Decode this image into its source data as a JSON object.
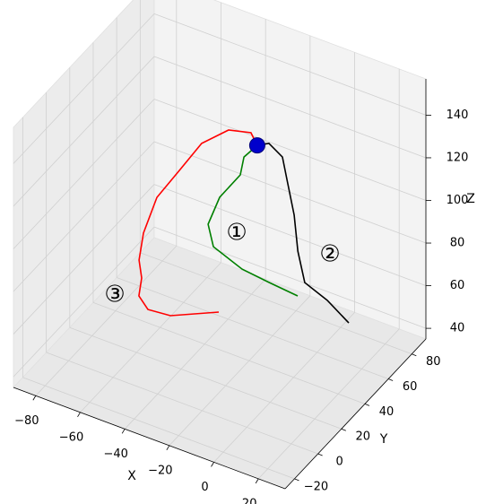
{
  "chart_data": {
    "type": "line3d",
    "xlabel": "X",
    "ylabel": "Y",
    "zlabel": "Z",
    "xlim": [
      -90,
      32
    ],
    "ylim": [
      -28,
      92
    ],
    "zlim": [
      35,
      157
    ],
    "xticks": [
      {
        "value": -80,
        "label": "−80"
      },
      {
        "value": -60,
        "label": "−60"
      },
      {
        "value": -40,
        "label": "−40"
      },
      {
        "value": -20,
        "label": "−20"
      },
      0,
      20
    ],
    "yticks": [
      {
        "value": -20,
        "label": "−20"
      },
      0,
      20,
      40,
      60,
      80
    ],
    "zticks": [
      40,
      60,
      80,
      100,
      120,
      140
    ],
    "grid": true,
    "series": [
      {
        "color": "#008000",
        "x": [
          -21.3,
          -25.4,
          -27.7,
          -34.2,
          -36.3,
          -34.2,
          -24.3,
          -15.8,
          -6.1
        ],
        "y": [
          49.4,
          45.9,
          47.1,
          41.9,
          36.0,
          36.5,
          42.2,
          49.1,
          55.0
        ],
        "z": [
          130,
          125,
          115,
          105,
          95,
          85,
          75,
          68,
          62
        ]
      },
      {
        "color": "#000000",
        "x": [
          -21.3,
          -19.4,
          -14.6,
          -10.8,
          -7.2,
          -4.7,
          -2.6,
          0.5,
          8.0
        ],
        "y": [
          49.4,
          55.7,
          58.2,
          54.8,
          54.1,
          52.5,
          54.4,
          67.8,
          71.8
        ],
        "z": [
          130,
          128,
          122,
          115,
          100,
          85,
          70,
          55,
          45
        ]
      },
      {
        "color": "#ff0000",
        "x": [
          -21.3,
          -26.0,
          -32.3,
          -38.4,
          -42.7,
          -48.4,
          -51.7,
          -54.7,
          -54.9,
          -54.9,
          -53.0,
          -48.9,
          -36.6
        ],
        "y": [
          49.4,
          53.0,
          45.8,
          34.5,
          23.6,
          15.3,
          10.1,
          12.1,
          14.7,
          12.3,
          16.4,
          27.8,
          45.7
        ],
        "z": [
          130,
          132,
          135,
          133,
          125,
          115,
          100,
          85,
          75,
          68,
          60,
          52,
          48
        ]
      }
    ],
    "points": [
      {
        "x": -21.3,
        "y": 49.4,
        "z": 130,
        "color": "#0000cc"
      }
    ],
    "annotations": [
      "①",
      "②",
      "③"
    ]
  }
}
